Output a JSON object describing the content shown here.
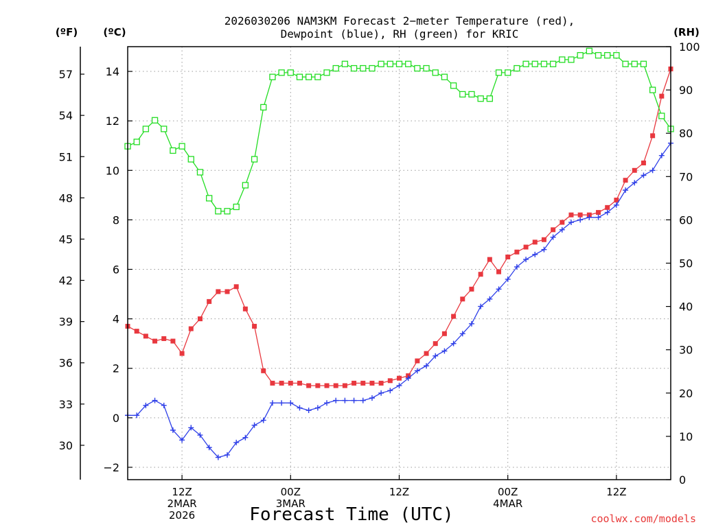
{
  "chart_data": {
    "type": "line",
    "title_lines": [
      "2026030206 NAM3KM Forecast 2−meter Temperature (red),",
      "Dewpoint (blue), RH (green) for KRIC"
    ],
    "xlabel": "Forecast Time (UTC)",
    "watermark": "coolwx.com/models",
    "axis_units": {
      "fahrenheit": "(ºF)",
      "celsius": "(ºC)",
      "rh": "(RH)"
    },
    "x_range_hours": [
      0,
      60
    ],
    "y_celsius_range": [
      -2.5,
      15
    ],
    "rh_range": [
      0,
      100
    ],
    "x_ticks": [
      {
        "hour": 6,
        "lines": [
          "12Z",
          "2MAR",
          "2026"
        ]
      },
      {
        "hour": 18,
        "lines": [
          "00Z",
          "3MAR"
        ]
      },
      {
        "hour": 30,
        "lines": [
          "12Z"
        ]
      },
      {
        "hour": 42,
        "lines": [
          "00Z",
          "4MAR"
        ]
      },
      {
        "hour": 54,
        "lines": [
          "12Z"
        ]
      }
    ],
    "celsius_ticks": [
      "−2",
      "0",
      "2",
      "4",
      "6",
      "8",
      "10",
      "12",
      "14"
    ],
    "fahrenheit_ticks": [
      "30",
      "33",
      "36",
      "39",
      "42",
      "45",
      "48",
      "51",
      "54",
      "57"
    ],
    "rh_ticks": [
      "0",
      "10",
      "20",
      "30",
      "40",
      "50",
      "60",
      "70",
      "80",
      "90",
      "100"
    ],
    "series": [
      {
        "name": "Temperature",
        "unit": "C",
        "color": "#e8383f",
        "marker": "filled-square",
        "values": [
          3.7,
          3.5,
          3.3,
          3.1,
          3.2,
          3.1,
          2.6,
          3.6,
          4.0,
          4.7,
          5.1,
          5.1,
          5.3,
          4.4,
          3.7,
          1.9,
          1.4,
          1.4,
          1.4,
          1.4,
          1.3,
          1.3,
          1.3,
          1.3,
          1.3,
          1.4,
          1.4,
          1.4,
          1.4,
          1.5,
          1.6,
          1.7,
          2.3,
          2.6,
          3.0,
          3.4,
          4.1,
          4.8,
          5.2,
          5.8,
          6.4,
          5.9,
          6.5,
          6.7,
          6.9,
          7.1,
          7.2,
          7.6,
          7.9,
          8.2,
          8.2,
          8.2,
          8.3,
          8.5,
          8.8,
          9.6,
          10.0,
          10.3,
          11.4,
          13.0,
          14.1
        ]
      },
      {
        "name": "Dewpoint",
        "unit": "C",
        "color": "#2d3ee8",
        "marker": "plus",
        "values": [
          0.1,
          0.1,
          0.5,
          0.7,
          0.5,
          -0.5,
          -0.9,
          -0.4,
          -0.7,
          -1.2,
          -1.6,
          -1.5,
          -1.0,
          -0.8,
          -0.3,
          -0.1,
          0.6,
          0.6,
          0.6,
          0.4,
          0.3,
          0.4,
          0.6,
          0.7,
          0.7,
          0.7,
          0.7,
          0.8,
          1.0,
          1.1,
          1.3,
          1.6,
          1.9,
          2.1,
          2.5,
          2.7,
          3.0,
          3.4,
          3.8,
          4.5,
          4.8,
          5.2,
          5.6,
          6.1,
          6.4,
          6.6,
          6.8,
          7.3,
          7.6,
          7.9,
          8.0,
          8.1,
          8.1,
          8.3,
          8.6,
          9.2,
          9.5,
          9.8,
          10.0,
          10.6,
          11.1
        ]
      },
      {
        "name": "RH",
        "unit": "%",
        "color": "#22dd22",
        "marker": "open-square",
        "values": [
          77,
          78,
          81,
          83,
          81,
          76,
          77,
          74,
          71,
          65,
          62,
          62,
          63,
          68,
          74,
          86,
          93,
          94,
          94,
          93,
          93,
          93,
          94,
          95,
          96,
          95,
          95,
          95,
          96,
          96,
          96,
          96,
          95,
          95,
          94,
          93,
          91,
          89,
          89,
          88,
          88,
          94,
          94,
          95,
          96,
          96,
          96,
          96,
          97,
          97,
          98,
          99,
          98,
          98,
          98,
          96,
          96,
          96,
          90,
          84,
          81
        ]
      }
    ]
  }
}
